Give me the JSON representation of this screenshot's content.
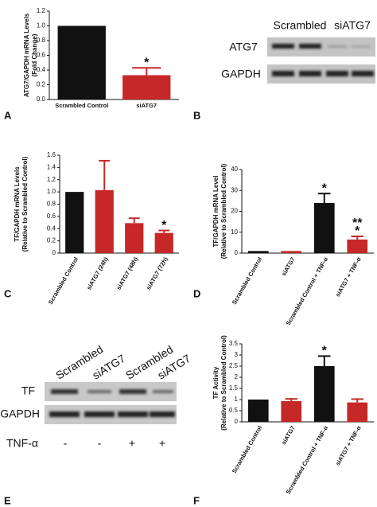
{
  "chart_data": [
    {
      "type": "bar",
      "panel_label": "A",
      "ylabel": [
        "ATG7/GAPDH mRNA Levels",
        "(Fold Change)"
      ],
      "categories": [
        "Scrambled Control",
        "siATG7"
      ],
      "values": [
        1.0,
        0.33
      ],
      "errors": [
        null,
        0.1
      ],
      "colors": [
        "#111111",
        "#c62828"
      ],
      "annotations": [
        null,
        "*"
      ],
      "ylim": [
        0,
        1.2
      ],
      "yticks": [
        {
          "value": 0,
          "label": "0.0"
        },
        0.2,
        0.4,
        0.6,
        0.8,
        {
          "value": 1,
          "label": "1.0"
        },
        1.2
      ]
    },
    {
      "type": "bar",
      "panel_label": "C",
      "ylabel": [
        "TF/GAPDH mRNA Levels",
        "(Relative to Scrambled Control)"
      ],
      "categories": [
        "Scrambled Control",
        "siATG7 (24h)",
        "siATG7 (48h)",
        "siATG7 (72h)"
      ],
      "values": [
        1.0,
        1.03,
        0.49,
        0.33
      ],
      "errors": [
        null,
        0.48,
        0.08,
        0.04
      ],
      "colors": [
        "#111111",
        "#c62828",
        "#c62828",
        "#c62828"
      ],
      "annotations": [
        null,
        null,
        null,
        "*"
      ],
      "ylim": [
        0,
        1.6
      ],
      "yticks": [
        0,
        0.2,
        0.4,
        0.6,
        0.8,
        {
          "value": 1,
          "label": "1.0"
        },
        1.2,
        1.4,
        1.6
      ]
    },
    {
      "type": "bar",
      "panel_label": "D",
      "ylabel": [
        "TF/GAPDH mRNA Level",
        "(Relative to Scrambled Control)"
      ],
      "categories": [
        "Scrambled Control",
        "siATG7",
        "Scrambled Control + TNF-α",
        "siATG7 + TNF-α"
      ],
      "values": [
        1,
        1,
        24,
        6.5
      ],
      "errors": [
        null,
        null,
        4.5,
        1.5
      ],
      "colors": [
        "#111111",
        "#c62828",
        "#111111",
        "#c62828"
      ],
      "annotations": [
        null,
        null,
        "*",
        [
          "**",
          "*"
        ]
      ],
      "ylim": [
        0,
        40
      ],
      "yticks": [
        0,
        10,
        20,
        30,
        40
      ]
    },
    {
      "type": "bar",
      "panel_label": "F",
      "ylabel": [
        "TF Activity",
        "(Relative to Scrambled Control)"
      ],
      "categories": [
        "Scrambled Control",
        "siATG7",
        "Scrambled Control + TNF-α",
        "siATG7 + TNF-α"
      ],
      "values": [
        1,
        0.93,
        2.5,
        0.87
      ],
      "errors": [
        null,
        0.1,
        0.45,
        0.15
      ],
      "colors": [
        "#111111",
        "#c62828",
        "#111111",
        "#c62828"
      ],
      "annotations": [
        null,
        null,
        "*",
        null
      ],
      "ylim": [
        0,
        3.5
      ],
      "yticks": [
        0,
        0.5,
        1,
        1.5,
        2,
        2.5,
        3,
        3.5
      ]
    }
  ],
  "blot_b": {
    "panel_label": "B",
    "lanes": [
      "Scrambled",
      "siATG7"
    ],
    "rows": [
      "ATG7",
      "GAPDH"
    ]
  },
  "blot_e": {
    "panel_label": "E",
    "lanes": [
      "Scrambled",
      "siATG7",
      "Scrambled",
      "siATG7"
    ],
    "rows": [
      "TF",
      "GAPDH"
    ],
    "treatment": "TNF-α",
    "treatment_signs": [
      "-",
      "-",
      "+",
      "+"
    ]
  }
}
